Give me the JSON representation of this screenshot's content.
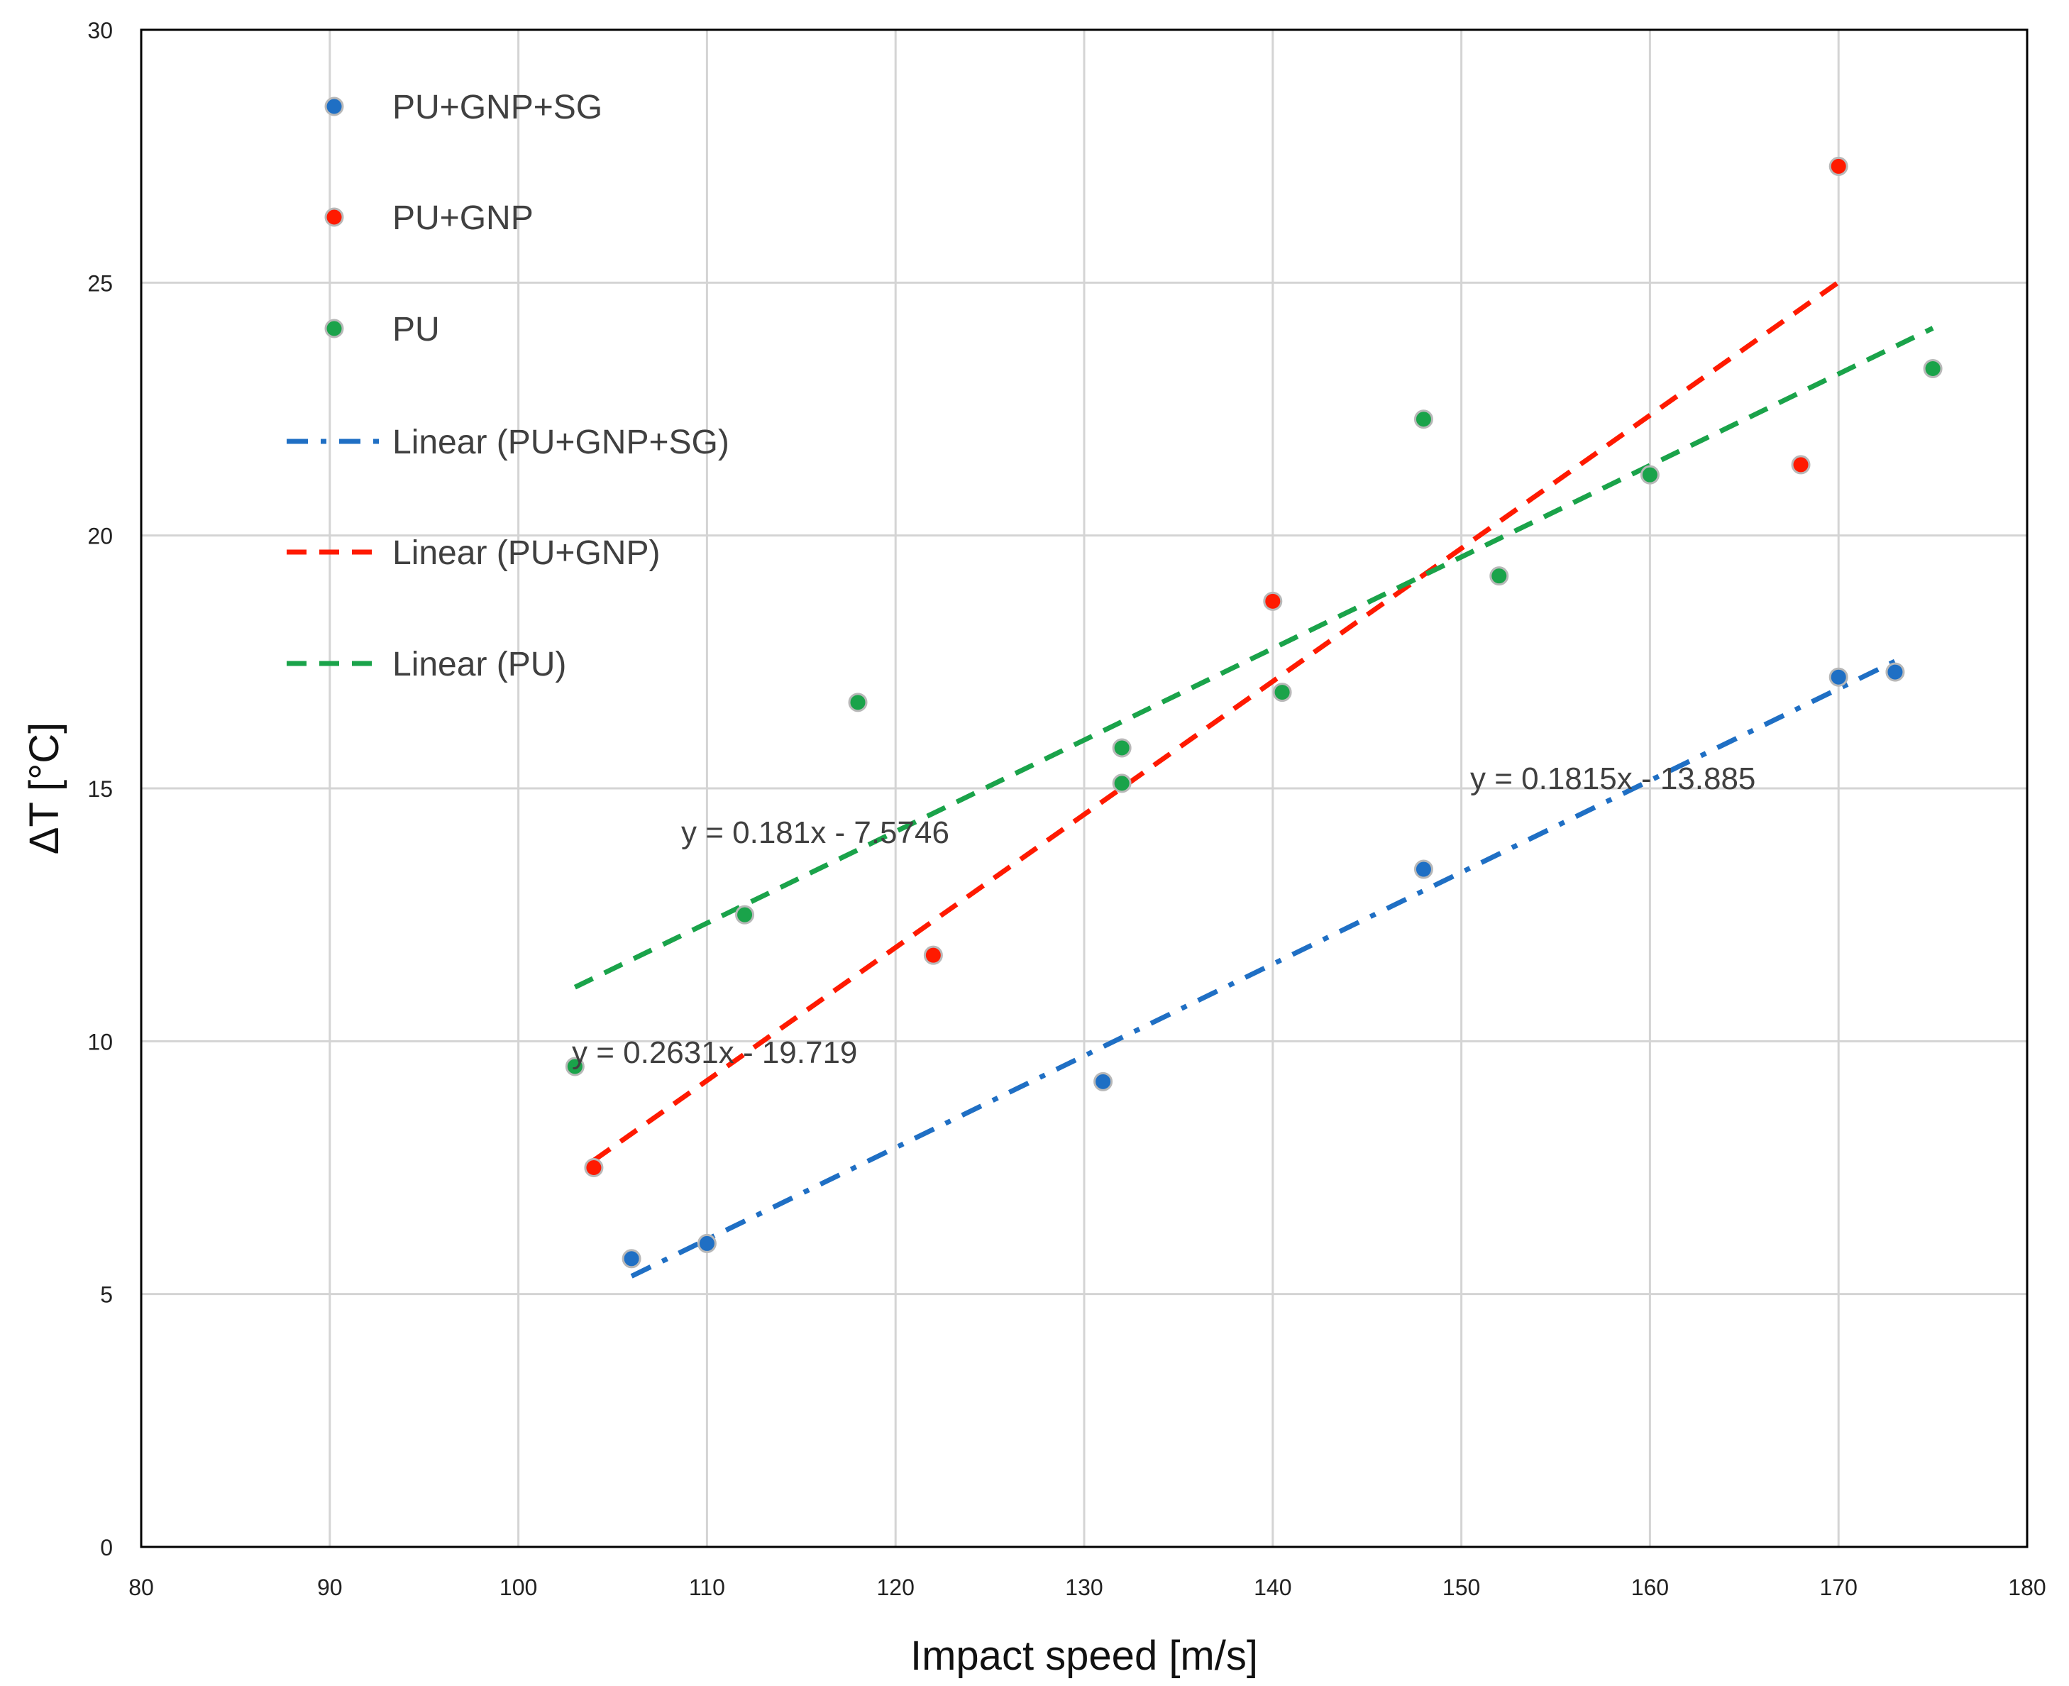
{
  "chart_data": {
    "type": "scatter",
    "title": "",
    "xlabel": "Impact speed [m/s]",
    "ylabel": "ΔT  [°C]",
    "xlim": [
      80,
      180
    ],
    "ylim": [
      0,
      30
    ],
    "xticks": [
      80,
      90,
      100,
      110,
      120,
      130,
      140,
      150,
      160,
      170,
      180
    ],
    "yticks": [
      0,
      5,
      10,
      15,
      20,
      25,
      30
    ],
    "xtick_labels": [
      "80",
      "90",
      "100",
      "110",
      "120",
      "130",
      "140",
      "150",
      "160",
      "170",
      "180"
    ],
    "ytick_labels": [
      "0",
      "5",
      "10",
      "15",
      "20",
      "25",
      "30"
    ],
    "grid": true,
    "legend_position": "top-left",
    "series": [
      {
        "name": "PU+GNP+SG",
        "color": "#1f6fc4",
        "points": [
          [
            106,
            5.7
          ],
          [
            110,
            6.0
          ],
          [
            131,
            9.2
          ],
          [
            148,
            13.4
          ],
          [
            170,
            17.2
          ],
          [
            173,
            17.3
          ]
        ]
      },
      {
        "name": "PU+GNP",
        "color": "#ff1a00",
        "points": [
          [
            104,
            7.5
          ],
          [
            122,
            11.7
          ],
          [
            140,
            18.7
          ],
          [
            168,
            21.4
          ],
          [
            170,
            27.3
          ]
        ]
      },
      {
        "name": "PU",
        "color": "#1aa34a",
        "points": [
          [
            103,
            9.5
          ],
          [
            112,
            12.5
          ],
          [
            118,
            16.7
          ],
          [
            132,
            15.8
          ],
          [
            132,
            15.1
          ],
          [
            140.5,
            16.9
          ],
          [
            148,
            22.3
          ],
          [
            152,
            19.2
          ],
          [
            160,
            21.2
          ],
          [
            175,
            23.3
          ]
        ]
      }
    ],
    "trendlines": [
      {
        "name": "Linear (PU+GNP+SG)",
        "series": "PU+GNP+SG",
        "color": "#1f6fc4",
        "dash": "dash-dot",
        "slope": 0.1815,
        "intercept": -13.885,
        "x_range": [
          106,
          173
        ],
        "equation": "y = 0.1815x - 13.885"
      },
      {
        "name": "Linear (PU+GNP)",
        "series": "PU+GNP",
        "color": "#ff1a00",
        "dash": "dash",
        "slope": 0.2631,
        "intercept": -19.719,
        "x_range": [
          104,
          170
        ],
        "equation": "y = 0.2631x - 19.719"
      },
      {
        "name": "Linear (PU)",
        "series": "PU",
        "color": "#1aa34a",
        "dash": "dash",
        "slope": 0.181,
        "intercept": -7.5746,
        "x_range": [
          103,
          175
        ],
        "equation": "y = 0.181x - 7.5746"
      }
    ],
    "legend": [
      "PU+GNP+SG",
      "PU+GNP",
      "PU",
      "Linear (PU+GNP+SG)",
      "Linear (PU+GNP)",
      "Linear (PU)"
    ]
  }
}
